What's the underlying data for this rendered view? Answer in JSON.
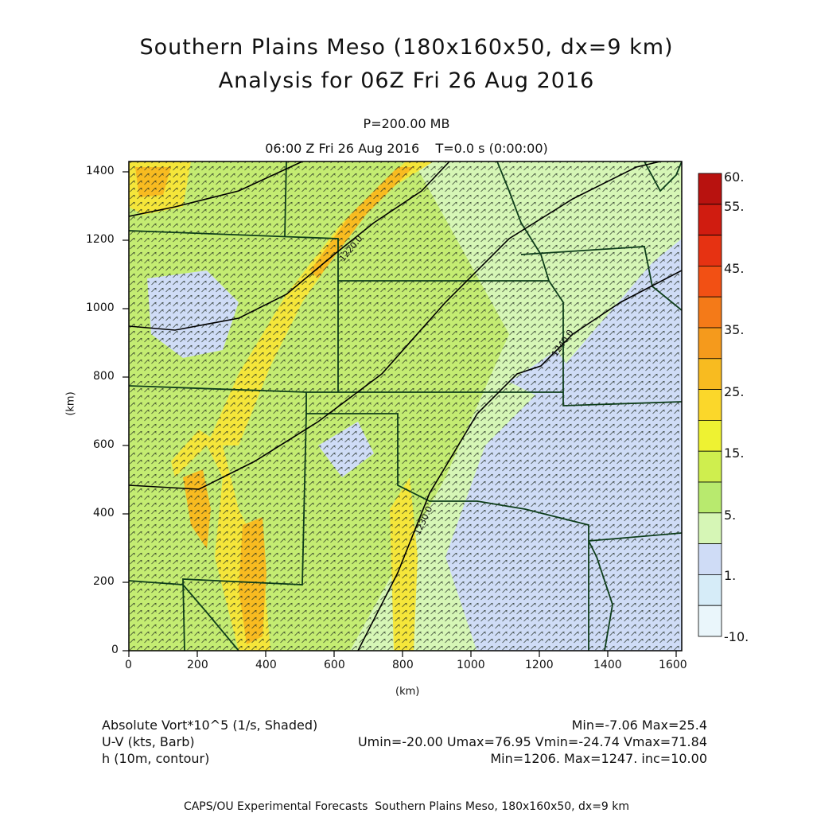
{
  "header": {
    "title_line1": "Southern Plains Meso (180x160x50, dx=9 km)",
    "title_line2": "Analysis for 06Z Fri 26 Aug 2016",
    "level": "P=200.00 MB",
    "time": "06:00 Z Fri 26 Aug 2016    T=0.0 s (0:00:00)"
  },
  "axes": {
    "x_label": "(km)",
    "y_label": "(km)",
    "x_ticks": [
      "0",
      "200",
      "400",
      "600",
      "800",
      "1000",
      "1200",
      "1400",
      "1600"
    ],
    "y_ticks": [
      "0",
      "200",
      "400",
      "600",
      "800",
      "1000",
      "1200",
      "1400"
    ],
    "xlim": [
      0,
      1620
    ],
    "ylim": [
      0,
      1440
    ]
  },
  "colorbar": {
    "labels": [
      "60.",
      "55.",
      "45.",
      "35.",
      "25.",
      "15.",
      "5.",
      "1.",
      "-10."
    ],
    "colors": [
      "#b8120f",
      "#d01c10",
      "#e63212",
      "#f25014",
      "#f47a18",
      "#f59a1c",
      "#f8bb20",
      "#fbd72a",
      "#eef232",
      "#cfee4e",
      "#b8ea6e",
      "#d6f6b6",
      "#cfdcf6",
      "#d6ecf8",
      "#eaf6fb"
    ]
  },
  "contours": [
    {
      "label": "1220.0"
    },
    {
      "label": "1230.0"
    },
    {
      "label": "1240.0"
    }
  ],
  "info": {
    "field1": "Absolute Vort*10^5 (1/s, Shaded)",
    "field1_stats": "Min=-7.06 Max=25.4",
    "field2": "U-V (kts, Barb)",
    "field2_stats": "Umin=-20.00 Umax=76.95 Vmin=-24.74 Vmax=71.84",
    "field3": "h (10m, contour)",
    "field3_stats": "Min=1206. Max=1247. inc=10.00"
  },
  "footer": "CAPS/OU Experimental Forecasts  Southern Plains Meso, 180x160x50, dx=9 km"
}
